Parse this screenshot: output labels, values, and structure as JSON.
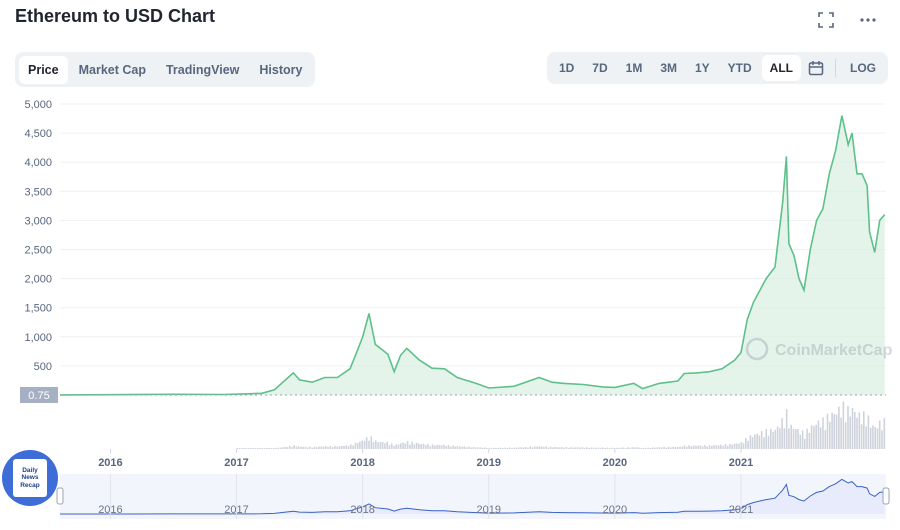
{
  "title": "Ethereum to USD Chart",
  "icons": {
    "fullscreen": "fullscreen-icon",
    "more": "more-icon",
    "calendar": "calendar-icon"
  },
  "tabs": [
    {
      "label": "Price",
      "active": true
    },
    {
      "label": "Market Cap",
      "active": false
    },
    {
      "label": "TradingView",
      "active": false
    },
    {
      "label": "History",
      "active": false
    }
  ],
  "ranges": [
    {
      "label": "1D",
      "active": false
    },
    {
      "label": "7D",
      "active": false
    },
    {
      "label": "1M",
      "active": false
    },
    {
      "label": "3M",
      "active": false
    },
    {
      "label": "1Y",
      "active": false
    },
    {
      "label": "YTD",
      "active": false
    },
    {
      "label": "ALL",
      "active": true
    }
  ],
  "log_label": "LOG",
  "watermark": "CoinMarketCap",
  "badge": [
    "Daily",
    "News",
    "Recap"
  ],
  "colors": {
    "line": "#5ec08a",
    "fill": "#d8f0e1",
    "volume": "#cfd3dc",
    "navigator": "#e8ebfb",
    "navigator_line": "#3a63c4",
    "marker_bg": "#a6b0c3"
  },
  "chart_data": {
    "type": "area",
    "title": "",
    "xlabel": "",
    "ylabel": "",
    "x": [
      2015.6,
      2016.0,
      2016.5,
      2016.9,
      2017.2,
      2017.3,
      2017.45,
      2017.5,
      2017.6,
      2017.7,
      2017.8,
      2017.9,
      2017.95,
      2018.0,
      2018.05,
      2018.1,
      2018.2,
      2018.25,
      2018.3,
      2018.35,
      2018.45,
      2018.55,
      2018.65,
      2018.75,
      2018.9,
      2019.0,
      2019.2,
      2019.4,
      2019.5,
      2019.6,
      2019.75,
      2019.9,
      2020.0,
      2020.15,
      2020.22,
      2020.35,
      2020.5,
      2020.55,
      2020.65,
      2020.75,
      2020.85,
      2020.95,
      2021.0,
      2021.05,
      2021.1,
      2021.15,
      2021.2,
      2021.27,
      2021.33,
      2021.36,
      2021.38,
      2021.42,
      2021.46,
      2021.5,
      2021.55,
      2021.6,
      2021.65,
      2021.7,
      2021.75,
      2021.8,
      2021.85,
      2021.88,
      2021.92,
      2021.96,
      2022.0,
      2022.02,
      2022.06,
      2022.1,
      2022.14
    ],
    "values": [
      1,
      5,
      12,
      8,
      30,
      90,
      380,
      260,
      220,
      300,
      300,
      450,
      720,
      1000,
      1400,
      870,
      700,
      400,
      680,
      800,
      600,
      460,
      450,
      300,
      200,
      120,
      150,
      300,
      220,
      200,
      180,
      140,
      130,
      200,
      110,
      200,
      240,
      370,
      380,
      400,
      450,
      600,
      730,
      1300,
      1600,
      1800,
      2000,
      2200,
      3300,
      4100,
      2600,
      2400,
      2000,
      1800,
      2500,
      3000,
      3200,
      3800,
      4200,
      4800,
      4300,
      4500,
      3800,
      3800,
      3600,
      2800,
      2450,
      3000,
      3100
    ],
    "volume_note_values": "relative trading volume bars along the bottom",
    "y_ticks": [
      "5,000",
      "4,500",
      "4,000",
      "3,500",
      "3,000",
      "2,500",
      "2,000",
      "1,500",
      "1,000",
      "500"
    ],
    "x_ticks": [
      "2016",
      "2017",
      "2018",
      "2019",
      "2020",
      "2021"
    ],
    "navigator_ticks": [
      "2016",
      "2017",
      "2018",
      "2019",
      "2020",
      "2021"
    ],
    "current_value_label": "0.75",
    "ylim": [
      0,
      5000
    ],
    "xlim": [
      2015.6,
      2022.15
    ],
    "grid": true,
    "legend": "none"
  }
}
